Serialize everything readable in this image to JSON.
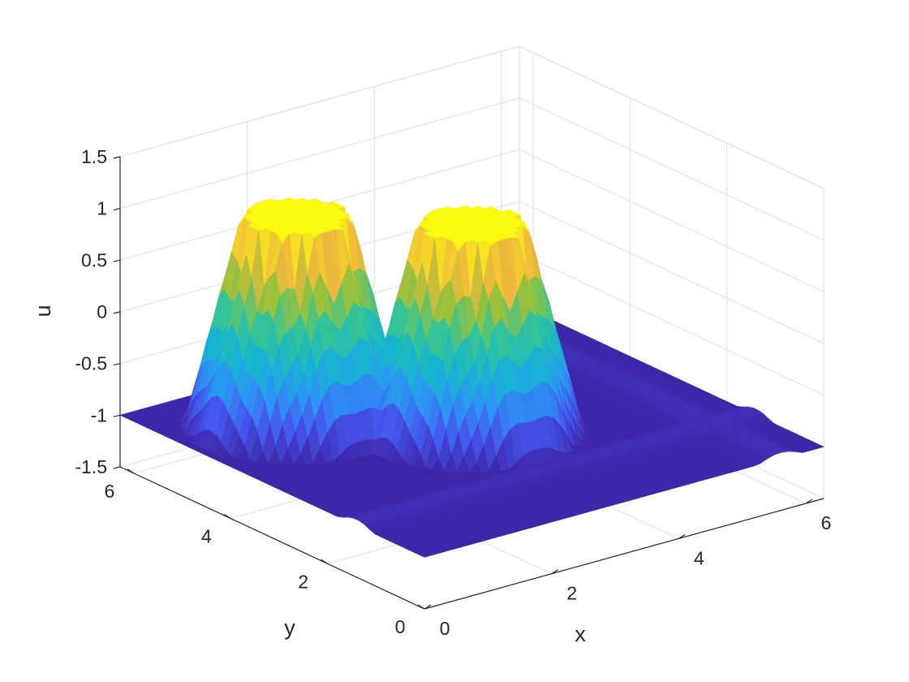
{
  "chart_data": {
    "type": "surface",
    "title": "",
    "xlabel": "x",
    "ylabel": "y",
    "zlabel": "u",
    "xlim": [
      0,
      6.283
    ],
    "ylim": [
      0,
      6.283
    ],
    "zlim": [
      -1.5,
      1.5
    ],
    "xticks": [
      "0",
      "2",
      "4",
      "6"
    ],
    "yticks": [
      "0",
      "2",
      "4",
      "6"
    ],
    "zticks": [
      "-1.5",
      "-1",
      "-0.5",
      "0",
      "0.5",
      "1",
      "1.5"
    ],
    "grid": true,
    "box": false,
    "colormap": "parula",
    "colormap_stops": [
      "#3e26a8",
      "#4457ee",
      "#2c96f5",
      "#15b7cc",
      "#36c495",
      "#9bc13a",
      "#f1b93c",
      "#f9fb0e"
    ],
    "baseline_value": -1,
    "plateaus": [
      {
        "x_center": 1.57,
        "y_center": 4.71,
        "radius": 0.7,
        "value": 1
      },
      {
        "x_center": 3.14,
        "y_center": 3.14,
        "radius": 0.7,
        "value": 1
      }
    ],
    "ridges": [
      {
        "axis": "y",
        "y_center": 1.4,
        "width": 0.7,
        "height": 0.06
      },
      {
        "axis": "x",
        "x_center": 5.6,
        "width": 0.7,
        "height": 0.06
      }
    ]
  }
}
